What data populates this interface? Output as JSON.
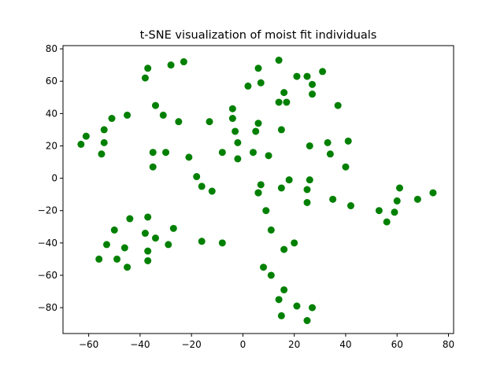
{
  "chart_data": {
    "type": "scatter",
    "title": "t-SNE visualization of moist fit individuals",
    "xlabel": "",
    "ylabel": "",
    "xlim": [
      -70,
      82
    ],
    "ylim": [
      -96,
      82
    ],
    "xticks": [
      -60,
      -40,
      -20,
      0,
      20,
      40,
      60,
      80
    ],
    "yticks": [
      -80,
      -60,
      -40,
      -20,
      0,
      20,
      40,
      60,
      80
    ],
    "grid": false,
    "colors": {
      "points": "#008000"
    },
    "series": [
      {
        "x": [
          -63,
          -61,
          -55,
          -54,
          -54,
          -51,
          -45,
          -38,
          -37,
          -28,
          -23,
          -34,
          -31,
          -25,
          -13,
          -35,
          -30,
          -35,
          -21,
          -18,
          -16,
          -12,
          -8,
          -4,
          -4,
          -2,
          -2,
          -3,
          2,
          4,
          5,
          6,
          6,
          7,
          10,
          6,
          15,
          17,
          14,
          16,
          21,
          25,
          27,
          27,
          31,
          37,
          26,
          14,
          33,
          34,
          40,
          41,
          26,
          15,
          18,
          7,
          6,
          25,
          25,
          9,
          11,
          35,
          42,
          53,
          56,
          59,
          60,
          61,
          68,
          74,
          -56,
          -53,
          -50,
          -49,
          -46,
          -45,
          -44,
          -38,
          -37,
          -37,
          -37,
          -34,
          -29,
          -27,
          -16,
          -8,
          8,
          11,
          14,
          15,
          16,
          16,
          20,
          21,
          25,
          27
        ],
        "y": [
          21,
          26,
          15,
          22,
          30,
          37,
          39,
          62,
          68,
          70,
          72,
          45,
          39,
          35,
          35,
          16,
          16,
          7,
          13,
          1,
          -5,
          -8,
          16,
          37,
          43,
          12,
          22,
          29,
          57,
          16,
          29,
          34,
          68,
          59,
          14,
          -9,
          30,
          47,
          47,
          53,
          63,
          63,
          52,
          58,
          66,
          45,
          20,
          73,
          22,
          15,
          7,
          23,
          -1,
          -6,
          -1,
          -4,
          -9,
          -7,
          -15,
          -20,
          -32,
          -13,
          -17,
          -20,
          -27,
          -21,
          -14,
          -6,
          -13,
          -9,
          -50,
          -41,
          -32,
          -50,
          -43,
          -55,
          -25,
          -34,
          -45,
          -51,
          -24,
          -37,
          -41,
          -31,
          -39,
          -40,
          -55,
          -60,
          -75,
          -85,
          -69,
          -44,
          -40,
          -79,
          -88,
          -80
        ]
      }
    ]
  }
}
